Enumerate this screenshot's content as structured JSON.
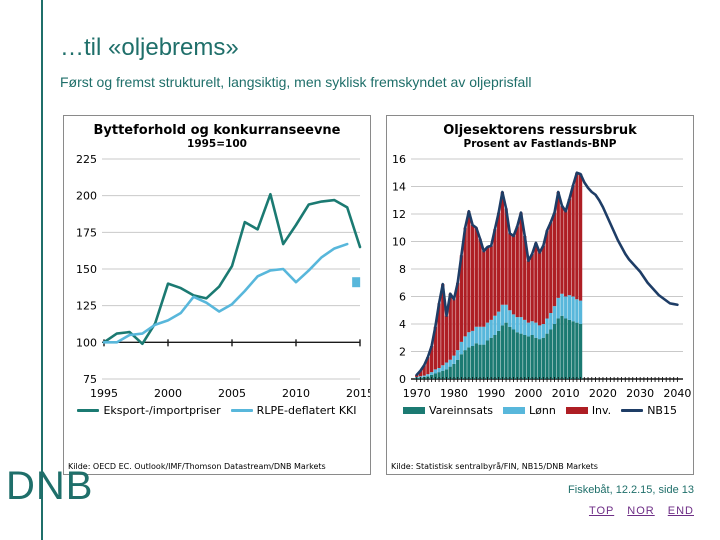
{
  "slide": {
    "title": "…til «oljebrems»",
    "subtitle": "Først og fremst strukturelt, langsiktig, men syklisk fremskyndet av oljeprisfall",
    "logo": "DNB",
    "footer": {
      "note": "Fiskebåt, 12.2.15, side 13",
      "links": [
        {
          "label": "TOP"
        },
        {
          "label": "NOR"
        },
        {
          "label": "END"
        }
      ]
    }
  },
  "colors": {
    "accent_teal": "#1f6f6a",
    "chart_teal": "#1b7a72",
    "light_blue": "#58b7db",
    "dark_red": "#ae1e24",
    "navy": "#1e3d66",
    "grid": "#c9c9c9",
    "axis": "#1a1a1a",
    "link_purple": "#6e2e86"
  },
  "chart_data": [
    {
      "type": "line",
      "title": "Bytteforhold og konkurranseevne",
      "subtitle": "1995=100",
      "x": [
        1995,
        1996,
        1997,
        1998,
        1999,
        2000,
        2001,
        2002,
        2003,
        2004,
        2005,
        2006,
        2007,
        2008,
        2009,
        2010,
        2011,
        2012,
        2013,
        2014,
        2015
      ],
      "xticks": [
        1995,
        2000,
        2005,
        2010,
        2015
      ],
      "ylim": [
        75,
        225
      ],
      "ytick_step": 25,
      "baseline": 100,
      "grid": true,
      "legend_position": "bottom",
      "series": [
        {
          "name": "Eksport-/importpriser",
          "color": "#1b7a72",
          "values": [
            100,
            106,
            107,
            99,
            113,
            140,
            137,
            132,
            130,
            138,
            152,
            182,
            177,
            201,
            167,
            180,
            194,
            196,
            197,
            192,
            165
          ]
        },
        {
          "name": "RLPE-deflatert KKI",
          "color": "#58b7db",
          "values": [
            100,
            100,
            105,
            106,
            112,
            115,
            120,
            131,
            127,
            121,
            126,
            135,
            145,
            149,
            150,
            141,
            149,
            158,
            164,
            167
          ]
        }
      ],
      "marker": {
        "x": 2014.7,
        "y": 141,
        "color": "#58b7db",
        "shape": "square"
      },
      "source": "Kilde: OECD EC. Outlook/IMF/Thomson  Datastream/DNB Markets"
    },
    {
      "type": "combo_stacked_bar_line",
      "title": "Oljesektorens ressursbruk",
      "subtitle": "Prosent av Fastlands-BNP",
      "bar_start_year": 1970,
      "bar_end_year": 2014,
      "xlim": [
        1969,
        2041.5
      ],
      "xticks": [
        1970,
        1980,
        1990,
        2000,
        2010,
        2020,
        2030,
        2040
      ],
      "ylim": [
        0,
        16
      ],
      "ytick_step": 2,
      "grid": true,
      "legend_position": "bottom",
      "bar_series": [
        {
          "name": "Vareinnsats",
          "color": "#1b7a72",
          "values": [
            0.1,
            0.1,
            0.15,
            0.2,
            0.3,
            0.4,
            0.5,
            0.6,
            0.7,
            0.9,
            1.1,
            1.4,
            1.8,
            2.1,
            2.3,
            2.4,
            2.6,
            2.5,
            2.5,
            2.8,
            3.0,
            3.2,
            3.5,
            3.9,
            4.1,
            3.8,
            3.6,
            3.4,
            3.3,
            3.2,
            3.1,
            3.2,
            3.0,
            2.9,
            3.0,
            3.3,
            3.6,
            4.0,
            4.4,
            4.6,
            4.4,
            4.3,
            4.2,
            4.1,
            4.0
          ]
        },
        {
          "name": "Lønn",
          "color": "#58b7db",
          "values": [
            0.05,
            0.1,
            0.1,
            0.15,
            0.2,
            0.3,
            0.3,
            0.4,
            0.5,
            0.5,
            0.6,
            0.7,
            0.9,
            1.0,
            1.1,
            1.1,
            1.2,
            1.3,
            1.3,
            1.3,
            1.3,
            1.4,
            1.4,
            1.5,
            1.3,
            1.2,
            1.1,
            1.1,
            1.2,
            1.1,
            1.0,
            1.0,
            1.1,
            1.0,
            1.0,
            1.1,
            1.2,
            1.3,
            1.5,
            1.6,
            1.6,
            1.8,
            1.8,
            1.7,
            1.7
          ]
        },
        {
          "name": "Inv.",
          "color": "#ae1e24",
          "values": [
            0.15,
            0.4,
            0.75,
            1.25,
            1.9,
            3.1,
            4.7,
            5.9,
            3.4,
            4.8,
            4.1,
            4.9,
            6.3,
            7.9,
            8.8,
            7.7,
            7.2,
            6.4,
            5.5,
            5.5,
            5.4,
            6.3,
            7.2,
            8.2,
            7.0,
            5.6,
            5.7,
            6.6,
            7.6,
            6.1,
            4.5,
            4.9,
            5.8,
            5.3,
            5.7,
            6.4,
            6.6,
            6.8,
            7.7,
            6.4,
            6.2,
            7.0,
            8.1,
            9.2,
            9.2
          ]
        }
      ],
      "line_series": {
        "name": "NB15",
        "color": "#1e3d66",
        "x_start": 1970,
        "values": [
          0.3,
          0.6,
          1.0,
          1.6,
          2.4,
          3.8,
          5.5,
          6.9,
          4.6,
          6.2,
          5.8,
          7.0,
          9.0,
          11.0,
          12.2,
          11.2,
          11.0,
          10.2,
          9.3,
          9.6,
          9.7,
          10.9,
          12.1,
          13.6,
          12.4,
          10.6,
          10.4,
          11.1,
          12.1,
          10.4,
          8.6,
          9.1,
          9.9,
          9.2,
          9.7,
          10.8,
          11.4,
          12.1,
          13.6,
          12.6,
          12.2,
          13.1,
          14.1,
          15.0,
          14.9,
          14.3,
          13.9,
          13.6,
          13.4,
          13.0,
          12.5,
          11.9,
          11.3,
          10.7,
          10.1,
          9.6,
          9.1,
          8.7,
          8.4,
          8.1,
          7.8,
          7.4,
          7.0,
          6.7,
          6.4,
          6.1,
          5.9,
          5.7,
          5.5,
          5.45,
          5.4
        ]
      },
      "source": "Kilde: Statistisk sentralbyrå/FIN,  NB15/DNB Markets"
    }
  ]
}
